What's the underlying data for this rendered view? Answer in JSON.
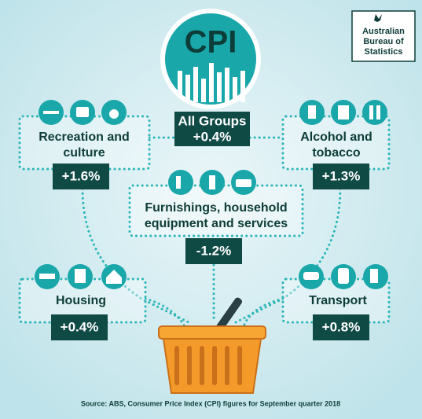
{
  "logo": [
    "Australian",
    "Bureau of",
    "Statistics"
  ],
  "headline": {
    "title": "CPI",
    "label": "All Groups",
    "change": "+0.4%"
  },
  "groups": [
    {
      "label_lines": [
        "Recreation and",
        "culture"
      ],
      "change": "+1.6%"
    },
    {
      "label_lines": [
        "Alcohol and",
        "tobacco"
      ],
      "change": "+1.3%"
    },
    {
      "label_lines": [
        "Furnishings, household",
        "equipment and services"
      ],
      "change": "-1.2%"
    },
    {
      "label_lines": [
        "Housing"
      ],
      "change": "+0.4%"
    },
    {
      "label_lines": [
        "Transport"
      ],
      "change": "+0.8%"
    }
  ],
  "source": "Source: ABS, Consumer Price Index (CPI) figures for September quarter 2018"
}
